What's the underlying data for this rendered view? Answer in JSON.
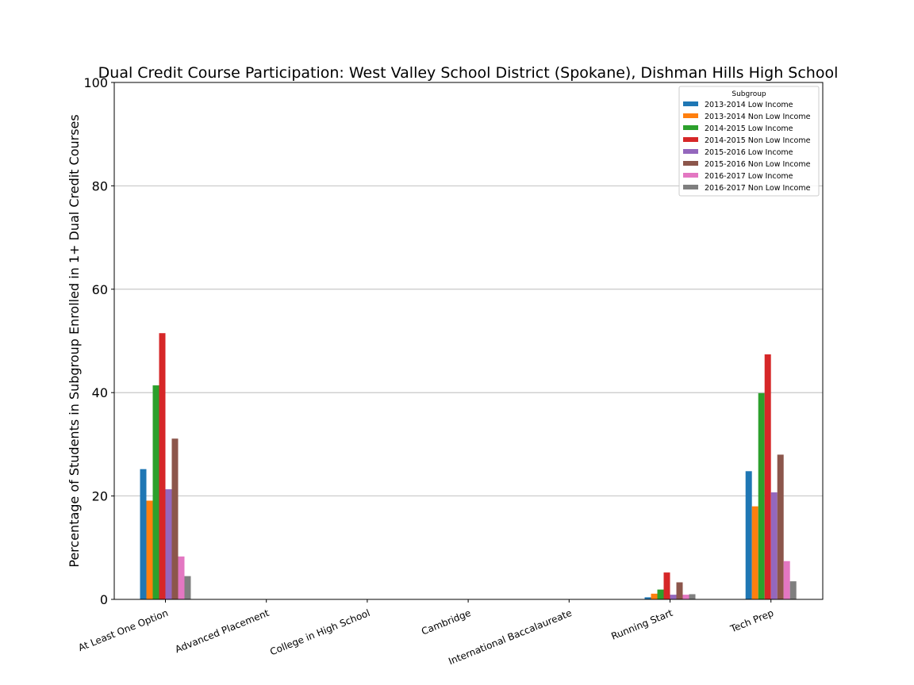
{
  "chart_data": {
    "type": "bar",
    "title": "Dual Credit Course Participation: West Valley School District (Spokane), Dishman Hills High School",
    "xlabel": "",
    "ylabel": "Percentage of Students in Subgroup Enrolled in 1+ Dual Credit Courses",
    "ylim": [
      0,
      100
    ],
    "yticks": [
      "0",
      "20",
      "40",
      "60",
      "80",
      "100"
    ],
    "ytick_values": [
      0,
      20,
      40,
      60,
      80,
      100
    ],
    "grid": "horizontal",
    "legend_title": "Subgroup",
    "legend_position": "top-right",
    "categories": [
      "At Least One Option",
      "Advanced Placement",
      "College in High School",
      "Cambridge",
      "International Baccalaureate",
      "Running Start",
      "Tech Prep"
    ],
    "series": [
      {
        "name": "2013-2014 Low Income",
        "color": "#1f77b4",
        "values": [
          25.2,
          0,
          0,
          0,
          0,
          0.4,
          24.8
        ]
      },
      {
        "name": "2013-2014 Non Low Income",
        "color": "#ff7f0e",
        "values": [
          19.1,
          0,
          0,
          0,
          0,
          1.1,
          18.0
        ]
      },
      {
        "name": "2014-2015 Low Income",
        "color": "#2ca02c",
        "values": [
          41.4,
          0,
          0,
          0,
          0,
          1.9,
          39.9
        ]
      },
      {
        "name": "2014-2015 Non Low Income",
        "color": "#d62728",
        "values": [
          51.5,
          0,
          0,
          0,
          0,
          5.2,
          47.4
        ]
      },
      {
        "name": "2015-2016 Low Income",
        "color": "#9467bd",
        "values": [
          21.3,
          0,
          0,
          0,
          0,
          0.9,
          20.7
        ]
      },
      {
        "name": "2015-2016 Non Low Income",
        "color": "#8c564b",
        "values": [
          31.1,
          0,
          0,
          0,
          0,
          3.3,
          28.0
        ]
      },
      {
        "name": "2016-2017 Low Income",
        "color": "#e377c2",
        "values": [
          8.3,
          0,
          0,
          0,
          0,
          0.9,
          7.4
        ]
      },
      {
        "name": "2016-2017 Non Low Income",
        "color": "#7f7f7f",
        "values": [
          4.5,
          0,
          0,
          0,
          0,
          1.0,
          3.5
        ]
      }
    ]
  }
}
